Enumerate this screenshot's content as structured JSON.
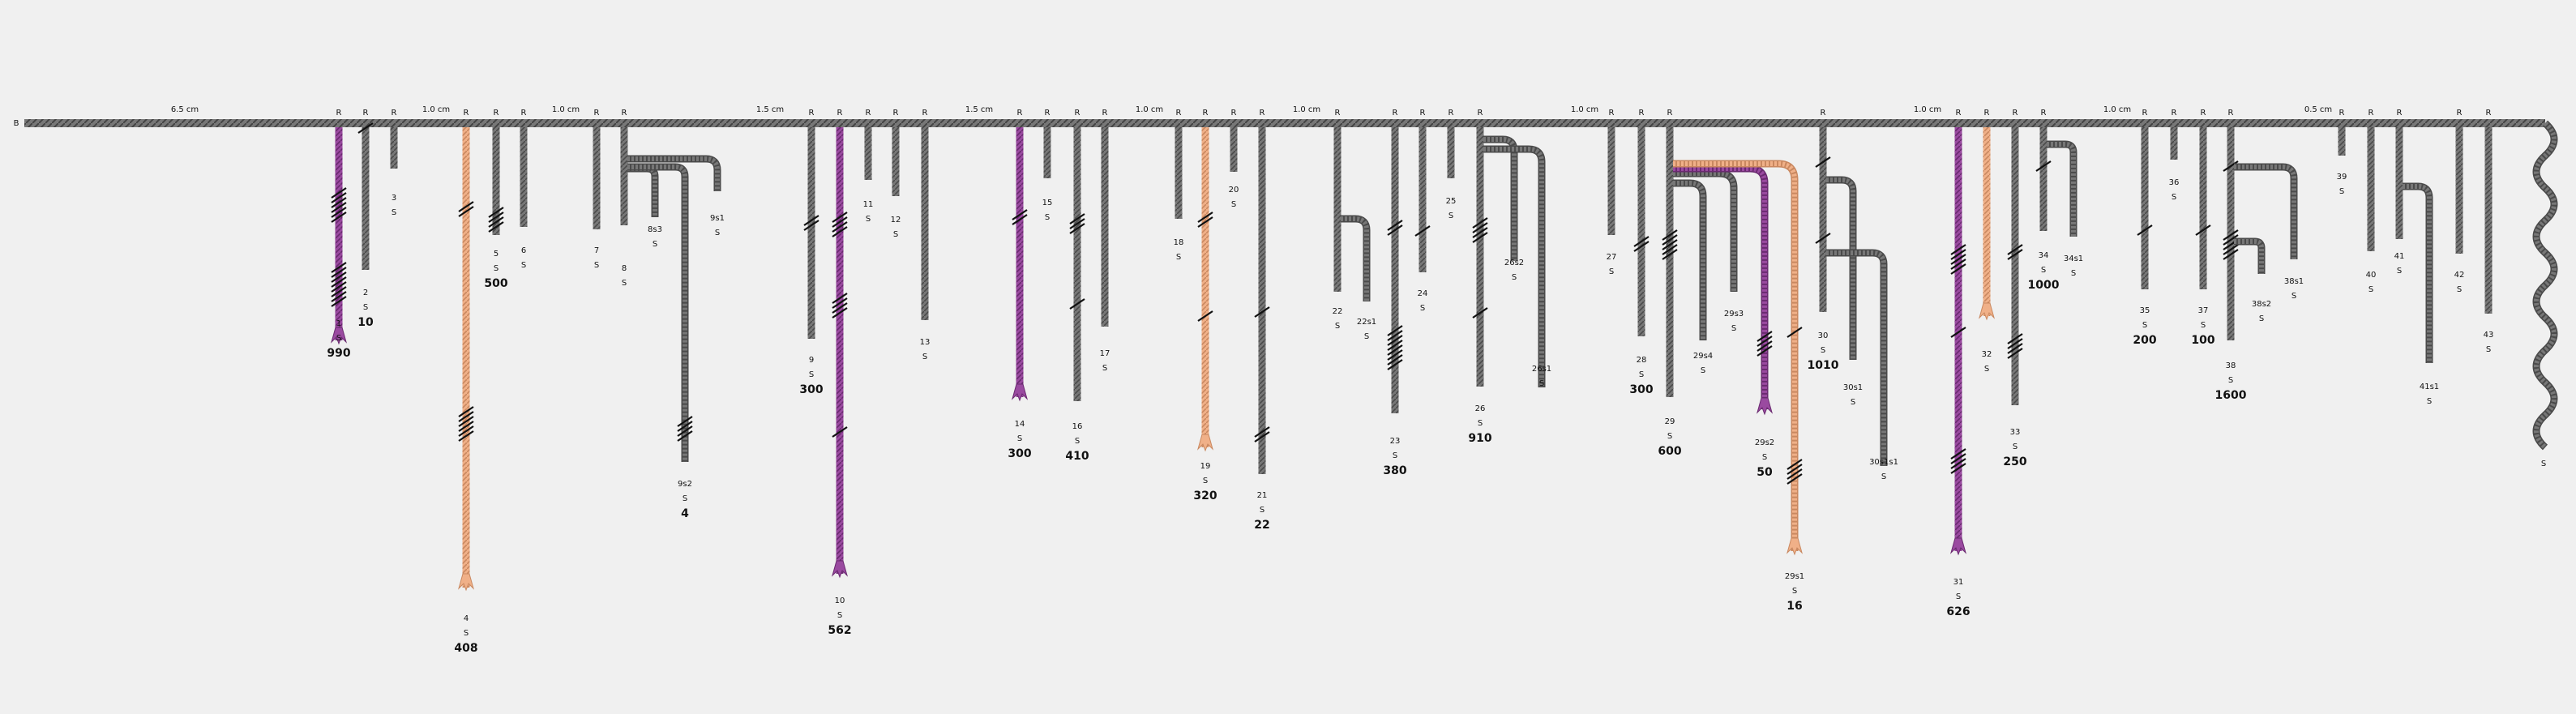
{
  "colors": {
    "background": "#f0f0f0",
    "cord_default": "#777777",
    "cord_default_edge": "#4a4a4a",
    "cord_purple": "#9a4aa0",
    "cord_purple_edge": "#6a2a70",
    "cord_peach": "#f0b088",
    "cord_peach_edge": "#c98860",
    "knot": "#111111"
  },
  "primary": {
    "label": "B"
  },
  "spacings": [
    "6.5 cm",
    "1.0 cm",
    "1.0 cm",
    "1.5 cm",
    "1.5 cm",
    "1.0 cm",
    "1.0 cm",
    "1.0 cm",
    "1.0 cm",
    "1.0 cm",
    "0.5 cm"
  ],
  "pendants": [
    {
      "num": "1",
      "attach": "R",
      "color": "purple",
      "value": "990"
    },
    {
      "num": "2",
      "attach": "R",
      "color": "gray",
      "value": "10"
    },
    {
      "num": "3",
      "attach": "R",
      "color": "gray",
      "value": ""
    },
    {
      "num": "4",
      "attach": "R",
      "color": "peach",
      "value": "408"
    },
    {
      "num": "5",
      "attach": "R",
      "color": "gray",
      "value": "500"
    },
    {
      "num": "6",
      "attach": "R",
      "color": "gray",
      "value": ""
    },
    {
      "num": "7",
      "attach": "R",
      "color": "gray",
      "value": ""
    },
    {
      "num": "8",
      "attach": "R",
      "color": "gray",
      "value": ""
    },
    {
      "num": "9",
      "attach": "R",
      "color": "gray",
      "value": "300"
    },
    {
      "num": "10",
      "attach": "R",
      "color": "purple",
      "value": "562"
    },
    {
      "num": "11",
      "attach": "R",
      "color": "gray",
      "value": ""
    },
    {
      "num": "12",
      "attach": "R",
      "color": "gray",
      "value": ""
    },
    {
      "num": "13",
      "attach": "R",
      "color": "gray",
      "value": ""
    },
    {
      "num": "14",
      "attach": "R",
      "color": "purple",
      "value": "300"
    },
    {
      "num": "15",
      "attach": "R",
      "color": "gray",
      "value": ""
    },
    {
      "num": "16",
      "attach": "R",
      "color": "gray",
      "value": "410"
    },
    {
      "num": "17",
      "attach": "R",
      "color": "gray",
      "value": ""
    },
    {
      "num": "18",
      "attach": "R",
      "color": "gray",
      "value": ""
    },
    {
      "num": "19",
      "attach": "R",
      "color": "peach",
      "value": "320"
    },
    {
      "num": "20",
      "attach": "R",
      "color": "gray",
      "value": ""
    },
    {
      "num": "21",
      "attach": "R",
      "color": "gray",
      "value": "22"
    },
    {
      "num": "22",
      "attach": "R",
      "color": "gray",
      "value": ""
    },
    {
      "num": "23",
      "attach": "R",
      "color": "gray",
      "value": "380"
    },
    {
      "num": "24",
      "attach": "R",
      "color": "gray",
      "value": ""
    },
    {
      "num": "25",
      "attach": "R",
      "color": "gray",
      "value": ""
    },
    {
      "num": "26",
      "attach": "R",
      "color": "gray",
      "value": "910"
    },
    {
      "num": "27",
      "attach": "R",
      "color": "gray",
      "value": ""
    },
    {
      "num": "28",
      "attach": "R",
      "color": "gray",
      "value": "300"
    },
    {
      "num": "29",
      "attach": "R",
      "color": "gray",
      "value": "600"
    },
    {
      "num": "30",
      "attach": "R",
      "color": "gray",
      "value": "1010"
    },
    {
      "num": "31",
      "attach": "R",
      "color": "purple",
      "value": "626"
    },
    {
      "num": "32",
      "attach": "R",
      "color": "peach",
      "value": ""
    },
    {
      "num": "33",
      "attach": "R",
      "color": "gray",
      "value": "250"
    },
    {
      "num": "34",
      "attach": "R",
      "color": "gray",
      "value": "1000"
    },
    {
      "num": "35",
      "attach": "R",
      "color": "gray",
      "value": "200"
    },
    {
      "num": "36",
      "attach": "R",
      "color": "gray",
      "value": ""
    },
    {
      "num": "37",
      "attach": "R",
      "color": "gray",
      "value": "100"
    },
    {
      "num": "38",
      "attach": "R",
      "color": "gray",
      "value": "1600"
    },
    {
      "num": "39",
      "attach": "R",
      "color": "gray",
      "value": ""
    },
    {
      "num": "40",
      "attach": "R",
      "color": "gray",
      "value": ""
    },
    {
      "num": "41",
      "attach": "R",
      "color": "gray",
      "value": ""
    },
    {
      "num": "42",
      "attach": "R",
      "color": "gray",
      "value": ""
    },
    {
      "num": "43",
      "attach": "R",
      "color": "gray",
      "value": ""
    }
  ],
  "subsidiaries": [
    {
      "num": "8s3",
      "parent": "8",
      "color": "gray",
      "value": ""
    },
    {
      "num": "9s1",
      "parent": "8",
      "color": "gray",
      "value": ""
    },
    {
      "num": "9s2",
      "parent": "8",
      "color": "gray",
      "value": "4"
    },
    {
      "num": "22s1",
      "parent": "22",
      "color": "gray",
      "value": ""
    },
    {
      "num": "26s2",
      "parent": "26",
      "color": "gray",
      "value": ""
    },
    {
      "num": "26s1",
      "parent": "26",
      "color": "gray",
      "value": ""
    },
    {
      "num": "29s4",
      "parent": "29",
      "color": "gray",
      "value": ""
    },
    {
      "num": "29s3",
      "parent": "29",
      "color": "gray",
      "value": ""
    },
    {
      "num": "29s2",
      "parent": "29",
      "color": "purple",
      "value": "50"
    },
    {
      "num": "29s1",
      "parent": "29",
      "color": "peach",
      "value": "16"
    },
    {
      "num": "30s1",
      "parent": "30",
      "color": "gray",
      "value": ""
    },
    {
      "num": "30s1s1",
      "parent": "30",
      "color": "gray",
      "value": ""
    },
    {
      "num": "34s1",
      "parent": "34",
      "color": "gray",
      "value": ""
    },
    {
      "num": "38s2",
      "parent": "38",
      "color": "gray",
      "value": ""
    },
    {
      "num": "38s1",
      "parent": "38",
      "color": "gray",
      "value": ""
    },
    {
      "num": "41s1",
      "parent": "41",
      "color": "gray",
      "value": ""
    }
  ],
  "spin_label": "S",
  "end_label": "S"
}
